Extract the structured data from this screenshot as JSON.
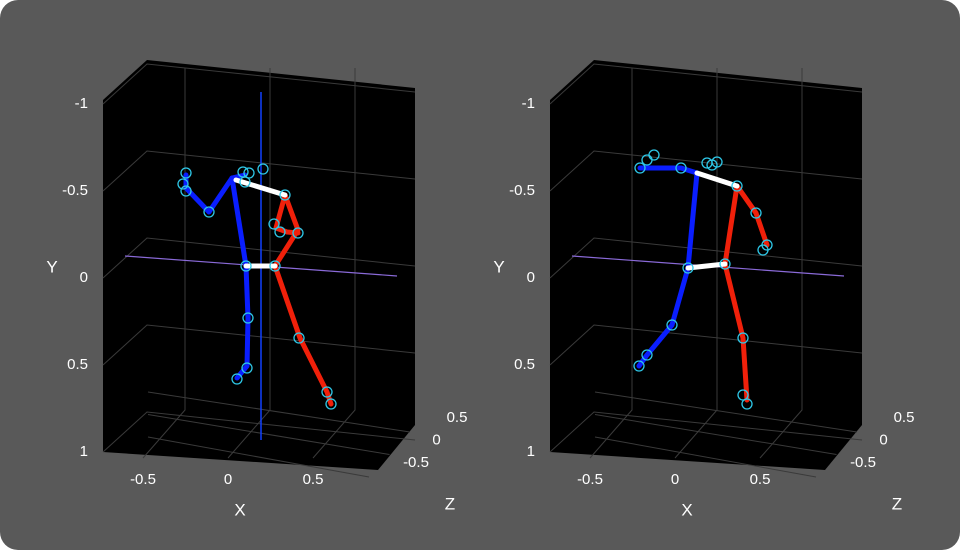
{
  "chart_data": [
    {
      "type": "skeleton3d",
      "xlabel": "X",
      "ylabel": "Y",
      "zlabel": "Z",
      "xticks": [
        -0.5,
        0,
        0.5
      ],
      "yticks": [
        -1,
        -0.5,
        0,
        0.5,
        1
      ],
      "zticks": [
        0.5,
        0,
        -0.5
      ]
    },
    {
      "type": "skeleton3d",
      "xlabel": "X",
      "ylabel": "Y",
      "zlabel": "Z",
      "xticks": [
        -0.5,
        0,
        0.5
      ],
      "yticks": [
        -1,
        -0.5,
        0,
        0.5,
        1
      ],
      "zticks": [
        0.5,
        0,
        -0.5
      ]
    }
  ]
}
